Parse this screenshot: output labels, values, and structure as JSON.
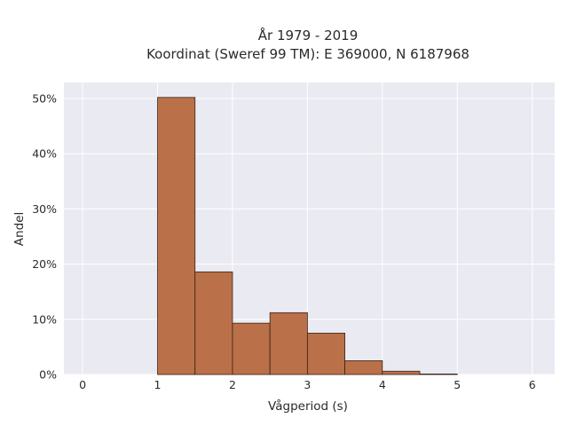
{
  "chart_data": {
    "type": "bar",
    "title_line1": "År 1979 - 2019",
    "title_line2": "Koordinat (Sweref 99 TM): E 369000, N 6187968",
    "xlabel": "Vågperiod (s)",
    "ylabel": "Andel",
    "xlim": [
      -0.25,
      6.3
    ],
    "ylim": [
      0,
      0.529
    ],
    "x_ticks": [
      0,
      1,
      2,
      3,
      4,
      5,
      6
    ],
    "y_ticks": [
      0,
      0.1,
      0.2,
      0.3,
      0.4,
      0.5
    ],
    "y_tick_labels": [
      "0%",
      "10%",
      "20%",
      "30%",
      "40%",
      "50%"
    ],
    "bin_width": 0.5,
    "bins": [
      1.0,
      1.5,
      2.0,
      2.5,
      3.0,
      3.5,
      4.0,
      4.5
    ],
    "values": [
      0.502,
      0.186,
      0.093,
      0.112,
      0.075,
      0.025,
      0.006,
      0.001
    ],
    "grid": true,
    "bar_color": "#b5653a",
    "bar_edge_color": "#3a2418",
    "plot_bg": "#eaeaf2"
  }
}
